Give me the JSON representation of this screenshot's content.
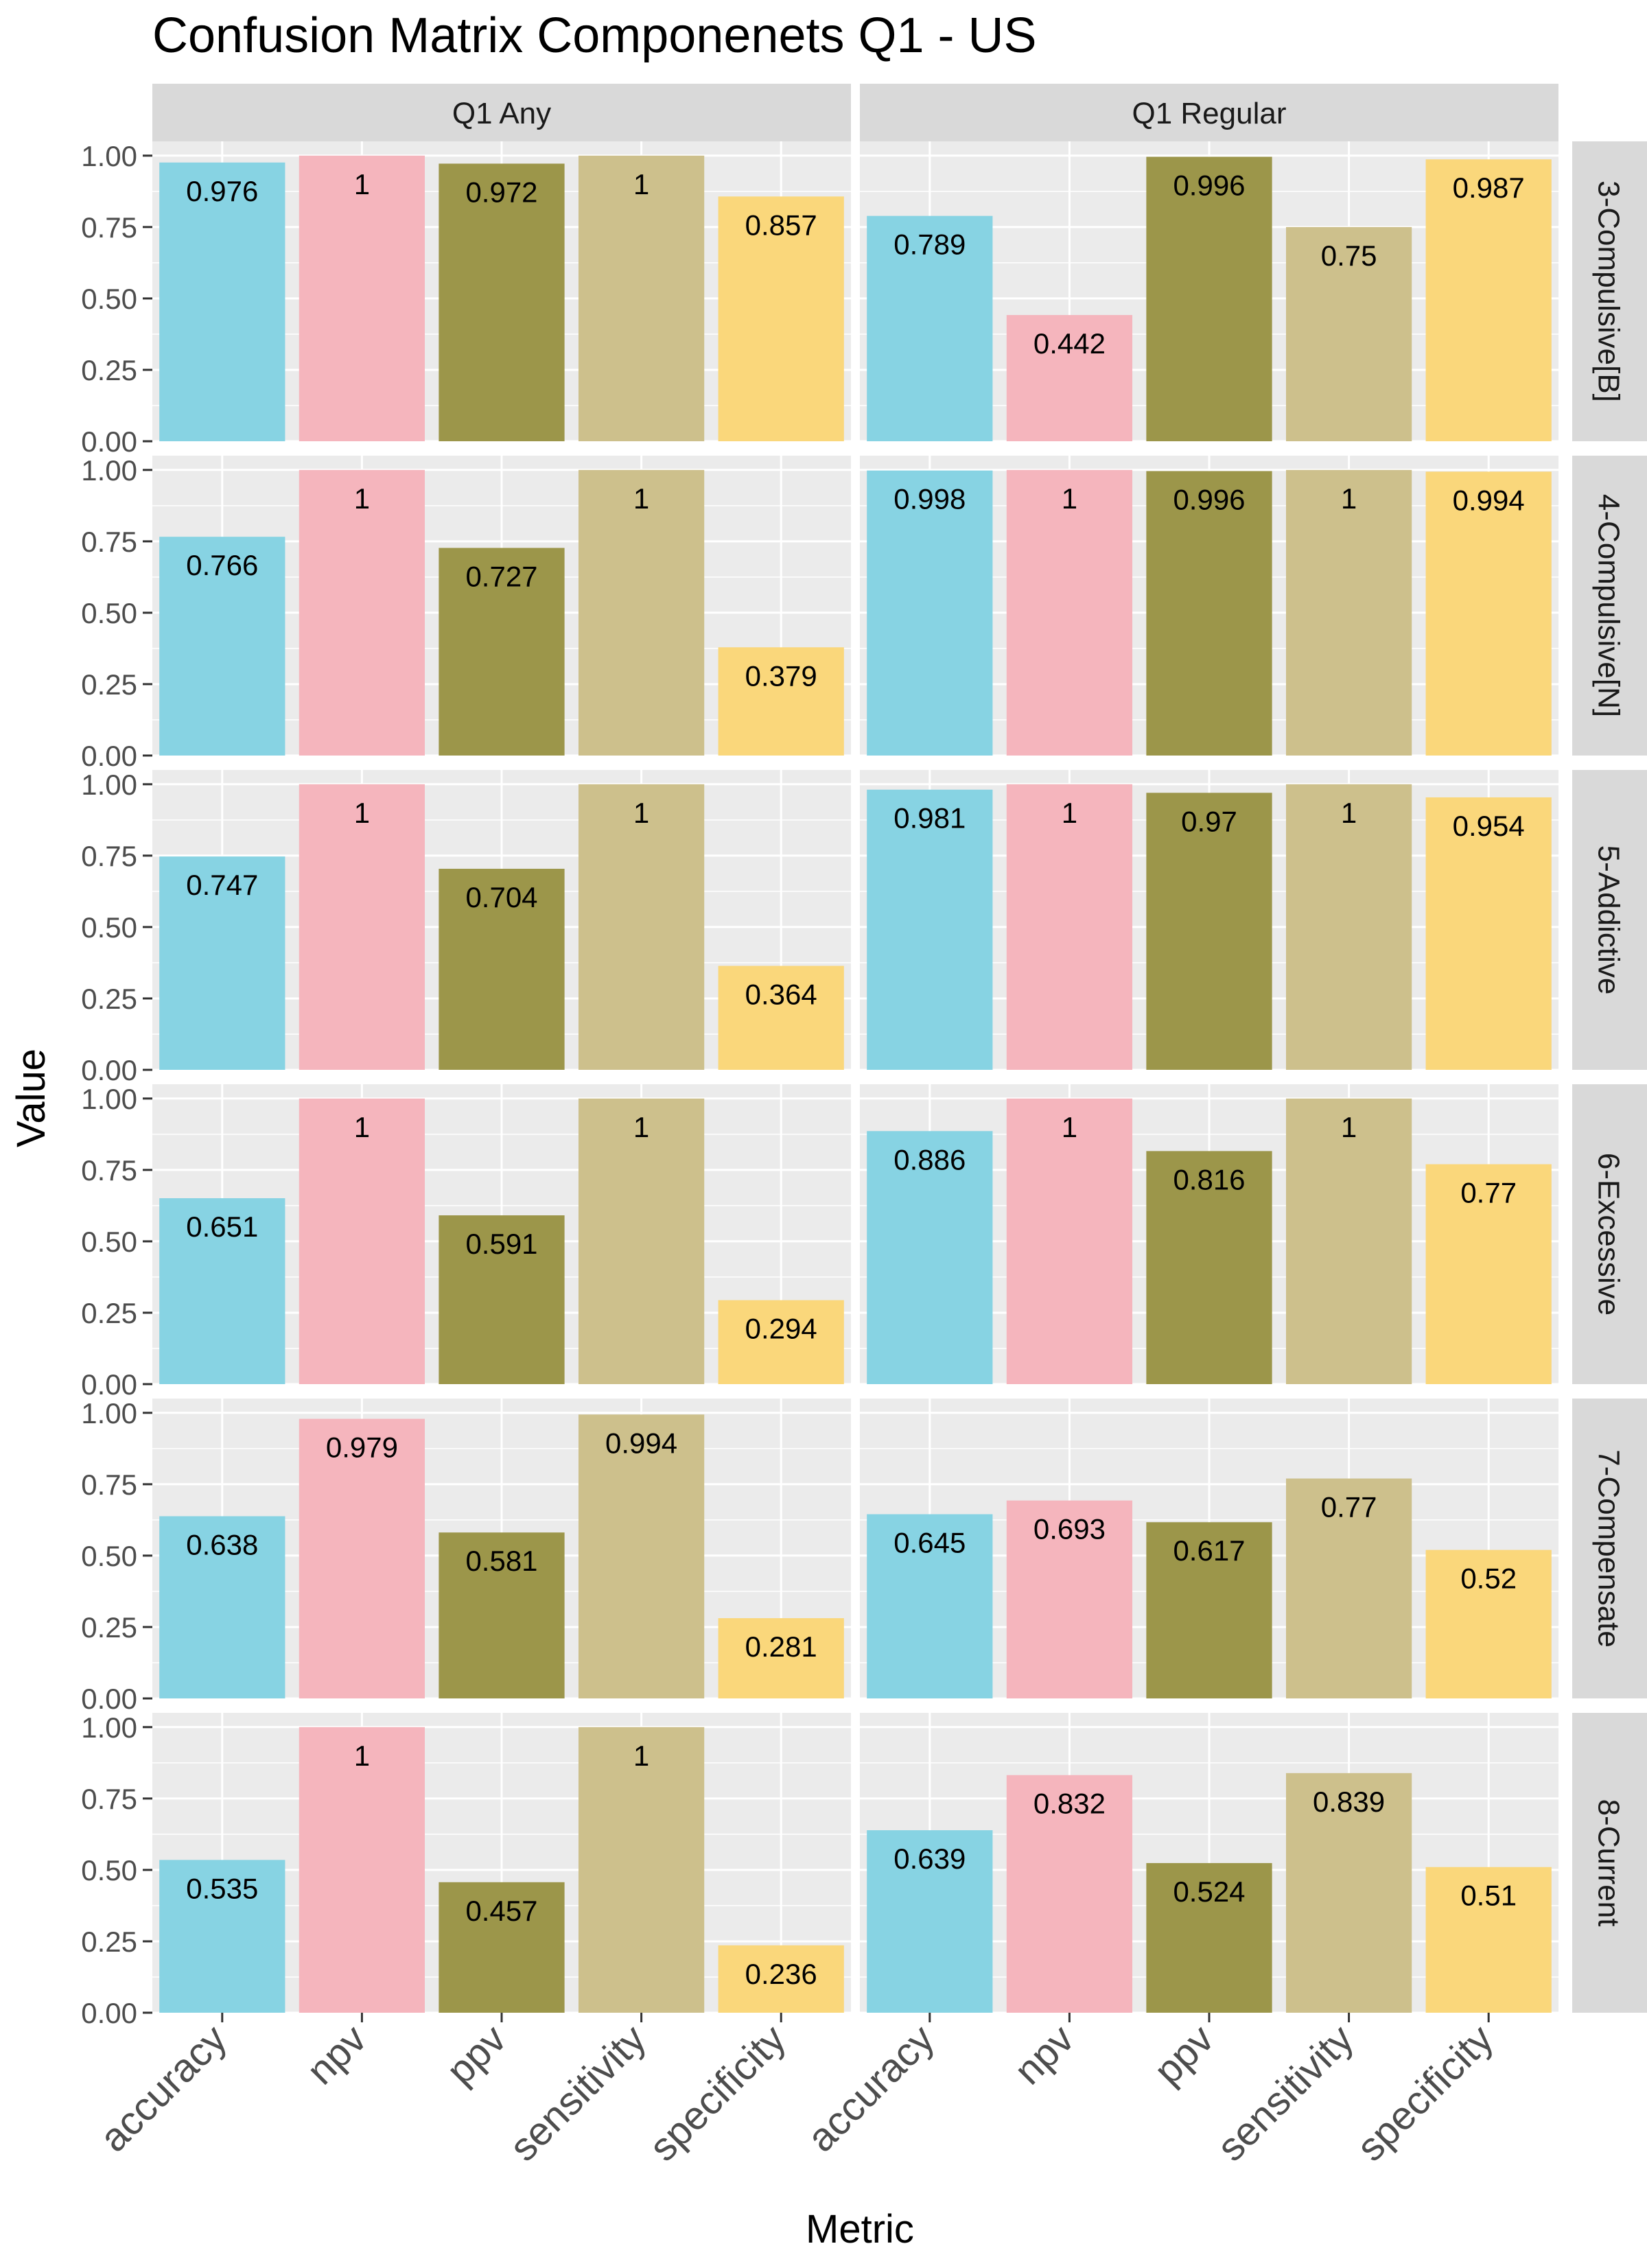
{
  "chart_data": {
    "type": "bar",
    "title": "Confusion Matrix Componenets Q1 - US",
    "xlabel": "Metric",
    "ylabel": "Value",
    "ylim": [
      0,
      1.05
    ],
    "yticks": [
      "0.00",
      "0.25",
      "0.50",
      "0.75",
      "1.00"
    ],
    "categories": [
      "accuracy",
      "npv",
      "ppv",
      "sensitivity",
      "specificity"
    ],
    "colors": [
      "#87D3E3",
      "#F5B5BD",
      "#9C964A",
      "#CDC08C",
      "#FAD77B"
    ],
    "col_facets": [
      "Q1 Any",
      "Q1 Regular"
    ],
    "row_facets": [
      "3-Compulsive[B]",
      "4-Compulsive[N]",
      "5-Addictive",
      "6-Excessive",
      "7-Compensate",
      "8-Current"
    ],
    "panels": [
      {
        "row": "3-Compulsive[B]",
        "col": "Q1 Any",
        "values": [
          0.976,
          1,
          0.972,
          1,
          0.857
        ],
        "labels": [
          "0.976",
          "1",
          "0.972",
          "1",
          "0.857"
        ]
      },
      {
        "row": "3-Compulsive[B]",
        "col": "Q1 Regular",
        "values": [
          0.789,
          0.442,
          0.996,
          0.75,
          0.987
        ],
        "labels": [
          "0.789",
          "0.442",
          "0.996",
          "0.75",
          "0.987"
        ]
      },
      {
        "row": "4-Compulsive[N]",
        "col": "Q1 Any",
        "values": [
          0.766,
          1,
          0.727,
          1,
          0.379
        ],
        "labels": [
          "0.766",
          "1",
          "0.727",
          "1",
          "0.379"
        ]
      },
      {
        "row": "4-Compulsive[N]",
        "col": "Q1 Regular",
        "values": [
          0.998,
          1,
          0.996,
          1,
          0.994
        ],
        "labels": [
          "0.998",
          "1",
          "0.996",
          "1",
          "0.994"
        ]
      },
      {
        "row": "5-Addictive",
        "col": "Q1 Any",
        "values": [
          0.747,
          1,
          0.704,
          1,
          0.364
        ],
        "labels": [
          "0.747",
          "1",
          "0.704",
          "1",
          "0.364"
        ]
      },
      {
        "row": "5-Addictive",
        "col": "Q1 Regular",
        "values": [
          0.981,
          1,
          0.97,
          1,
          0.954
        ],
        "labels": [
          "0.981",
          "1",
          "0.97",
          "1",
          "0.954"
        ]
      },
      {
        "row": "6-Excessive",
        "col": "Q1 Any",
        "values": [
          0.651,
          1,
          0.591,
          1,
          0.294
        ],
        "labels": [
          "0.651",
          "1",
          "0.591",
          "1",
          "0.294"
        ]
      },
      {
        "row": "6-Excessive",
        "col": "Q1 Regular",
        "values": [
          0.886,
          1,
          0.816,
          1,
          0.77
        ],
        "labels": [
          "0.886",
          "1",
          "0.816",
          "1",
          "0.77"
        ]
      },
      {
        "row": "7-Compensate",
        "col": "Q1 Any",
        "values": [
          0.638,
          0.979,
          0.581,
          0.994,
          0.281
        ],
        "labels": [
          "0.638",
          "0.979",
          "0.581",
          "0.994",
          "0.281"
        ]
      },
      {
        "row": "7-Compensate",
        "col": "Q1 Regular",
        "values": [
          0.645,
          0.693,
          0.617,
          0.77,
          0.52
        ],
        "labels": [
          "0.645",
          "0.693",
          "0.617",
          "0.77",
          "0.52"
        ]
      },
      {
        "row": "8-Current",
        "col": "Q1 Any",
        "values": [
          0.535,
          1,
          0.457,
          1,
          0.236
        ],
        "labels": [
          "0.535",
          "1",
          "0.457",
          "1",
          "0.236"
        ]
      },
      {
        "row": "8-Current",
        "col": "Q1 Regular",
        "values": [
          0.639,
          0.832,
          0.524,
          0.839,
          0.51
        ],
        "labels": [
          "0.639",
          "0.832",
          "0.524",
          "0.839",
          "0.51"
        ]
      }
    ],
    "legend": "none",
    "grid": true
  }
}
